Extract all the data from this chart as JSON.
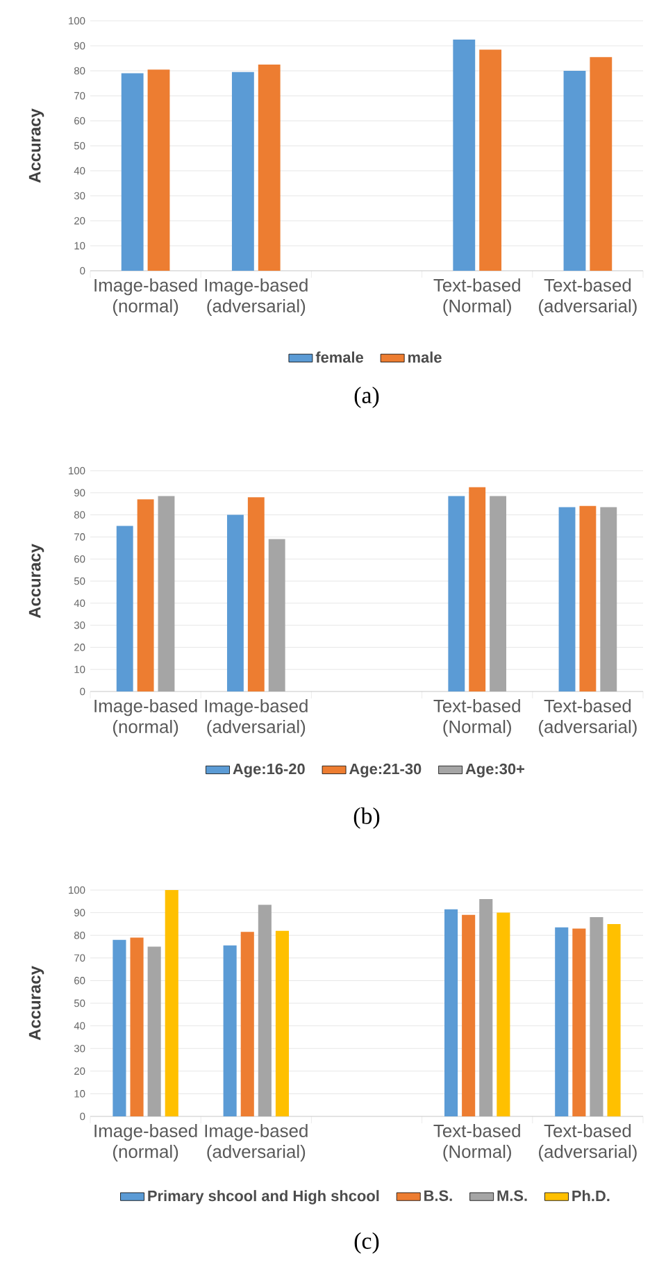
{
  "chart_data": [
    {
      "type": "bar",
      "ylabel": "Accuracy",
      "categories": [
        "Image-based (normal)",
        "Image-based (adversarial)",
        null,
        "Text-based (Normal)",
        "Text-based (adversarial)"
      ],
      "series": [
        {
          "name": "female",
          "color": "#5b9bd5",
          "values": [
            79,
            79.5,
            null,
            92.5,
            80
          ]
        },
        {
          "name": "male",
          "color": "#ed7d31",
          "values": [
            80.5,
            82.5,
            null,
            88.5,
            85.5
          ]
        }
      ],
      "ylim": [
        0,
        100
      ],
      "yticks": [
        0,
        10,
        20,
        30,
        40,
        50,
        60,
        70,
        80,
        90,
        100
      ],
      "grid": "y",
      "legend": "bottom",
      "annotations": [
        "(a)"
      ]
    },
    {
      "type": "bar",
      "ylabel": "Accuracy",
      "categories": [
        "Image-based (normal)",
        "Image-based (adversarial)",
        null,
        "Text-based (Normal)",
        "Text-based (adversarial)"
      ],
      "series": [
        {
          "name": "Age:16-20",
          "color": "#5b9bd5",
          "values": [
            75,
            80,
            null,
            88.5,
            83.5
          ]
        },
        {
          "name": "Age:21-30",
          "color": "#ed7d31",
          "values": [
            87,
            88,
            null,
            92.5,
            84
          ]
        },
        {
          "name": "Age:30+",
          "color": "#a5a5a5",
          "values": [
            88.5,
            69,
            null,
            88.5,
            83.5
          ]
        }
      ],
      "ylim": [
        0,
        100
      ],
      "yticks": [
        0,
        10,
        20,
        30,
        40,
        50,
        60,
        70,
        80,
        90,
        100
      ],
      "grid": "y",
      "legend": "bottom",
      "annotations": [
        "(b)"
      ]
    },
    {
      "type": "bar",
      "ylabel": "Accuracy",
      "categories": [
        "Image-based (normal)",
        "Image-based (adversarial)",
        null,
        "Text-based (Normal)",
        "Text-based (adversarial)"
      ],
      "series": [
        {
          "name": "Primary shcool and High shcool",
          "color": "#5b9bd5",
          "values": [
            78,
            75.5,
            null,
            91.5,
            83.5
          ]
        },
        {
          "name": "B.S.",
          "color": "#ed7d31",
          "values": [
            79,
            81.5,
            null,
            89,
            83
          ]
        },
        {
          "name": "M.S.",
          "color": "#a5a5a5",
          "values": [
            75,
            93.5,
            null,
            96,
            88
          ]
        },
        {
          "name": "Ph.D.",
          "color": "#ffc000",
          "values": [
            100,
            82,
            null,
            90,
            85
          ]
        }
      ],
      "ylim": [
        0,
        100
      ],
      "yticks": [
        0,
        10,
        20,
        30,
        40,
        50,
        60,
        70,
        80,
        90,
        100
      ],
      "grid": "y",
      "legend": "bottom",
      "annotations": [
        "(c)"
      ]
    }
  ]
}
